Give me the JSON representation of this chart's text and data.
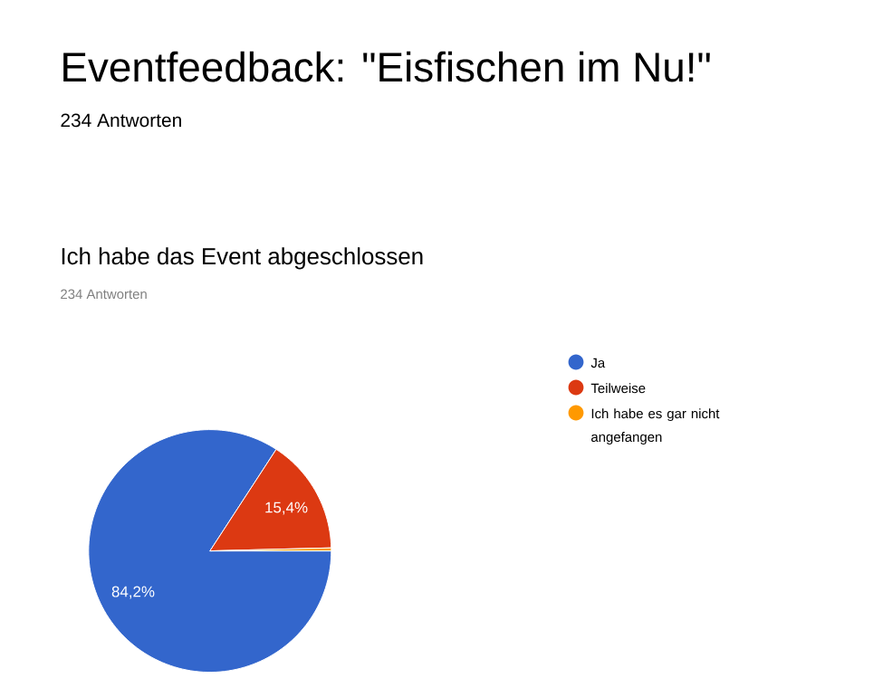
{
  "chart_data": {
    "type": "pie",
    "title": "Eventfeedback: \"Eisfischen im Nu!\"",
    "subtitle": "234 Antworten",
    "annotations": [
      "Ich habe das Event abgeschlossen",
      "234 Antworten"
    ],
    "categories": [
      "Ja",
      "Teilweise",
      "Ich habe es gar nicht angefangen"
    ],
    "values": [
      84.2,
      15.4,
      0.4
    ],
    "value_labels": [
      "84,2%",
      "15,4%",
      null
    ],
    "colors": [
      "#3366cc",
      "#dc3912",
      "#ff9900"
    ],
    "legend": "right"
  }
}
